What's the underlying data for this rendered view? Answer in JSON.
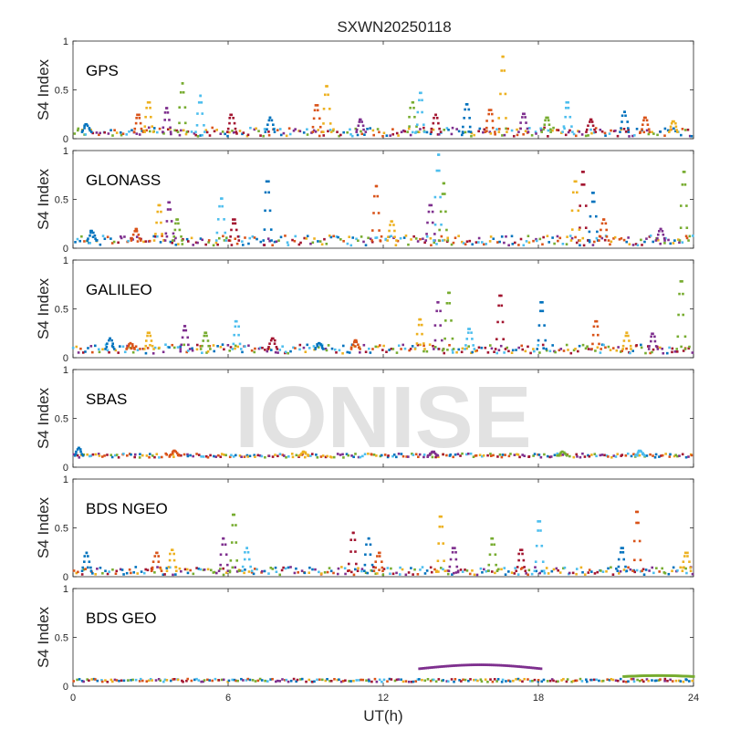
{
  "title": "SXWN20250118",
  "watermark": "IONISE",
  "xlabel": "UT(h)",
  "ylabel": "S4 Index",
  "xticks": [
    "0",
    "6",
    "12",
    "18",
    "24"
  ],
  "yticks": [
    "0",
    "0.5",
    "1"
  ],
  "colors": [
    "#0072BD",
    "#D95319",
    "#EDB120",
    "#7E2F8E",
    "#77AC30",
    "#4DBEEE",
    "#A2142F"
  ],
  "chart_data": [
    {
      "type": "scatter",
      "label": "GPS",
      "xlim": [
        0,
        24
      ],
      "ylim": [
        0,
        1
      ],
      "baseline": 0.07,
      "noise": 0.045,
      "spikes": [
        {
          "x": 0.6,
          "y": 0.15
        },
        {
          "x": 2.6,
          "y": 0.25
        },
        {
          "x": 3.0,
          "y": 0.38
        },
        {
          "x": 3.7,
          "y": 0.32
        },
        {
          "x": 4.3,
          "y": 0.58
        },
        {
          "x": 5.0,
          "y": 0.45
        },
        {
          "x": 6.2,
          "y": 0.25
        },
        {
          "x": 7.7,
          "y": 0.22
        },
        {
          "x": 9.5,
          "y": 0.35
        },
        {
          "x": 9.9,
          "y": 0.55
        },
        {
          "x": 11.2,
          "y": 0.2
        },
        {
          "x": 13.2,
          "y": 0.38
        },
        {
          "x": 13.5,
          "y": 0.48
        },
        {
          "x": 14.1,
          "y": 0.25
        },
        {
          "x": 15.3,
          "y": 0.36
        },
        {
          "x": 16.2,
          "y": 0.3
        },
        {
          "x": 16.7,
          "y": 0.86
        },
        {
          "x": 17.5,
          "y": 0.26
        },
        {
          "x": 18.4,
          "y": 0.22
        },
        {
          "x": 19.2,
          "y": 0.38
        },
        {
          "x": 20.1,
          "y": 0.2
        },
        {
          "x": 21.4,
          "y": 0.28
        },
        {
          "x": 22.2,
          "y": 0.22
        },
        {
          "x": 23.3,
          "y": 0.18
        }
      ]
    },
    {
      "type": "scatter",
      "label": "GLONASS",
      "xlim": [
        0,
        24
      ],
      "ylim": [
        0,
        1
      ],
      "baseline": 0.08,
      "noise": 0.05,
      "spikes": [
        {
          "x": 0.8,
          "y": 0.18
        },
        {
          "x": 2.5,
          "y": 0.2
        },
        {
          "x": 3.4,
          "y": 0.45
        },
        {
          "x": 3.8,
          "y": 0.48
        },
        {
          "x": 4.1,
          "y": 0.3
        },
        {
          "x": 5.8,
          "y": 0.52
        },
        {
          "x": 6.3,
          "y": 0.3
        },
        {
          "x": 7.6,
          "y": 0.7
        },
        {
          "x": 11.8,
          "y": 0.65
        },
        {
          "x": 12.4,
          "y": 0.28
        },
        {
          "x": 13.9,
          "y": 0.45
        },
        {
          "x": 14.4,
          "y": 0.68
        },
        {
          "x": 14.2,
          "y": 0.98
        },
        {
          "x": 19.8,
          "y": 0.8
        },
        {
          "x": 20.2,
          "y": 0.58
        },
        {
          "x": 20.6,
          "y": 0.3
        },
        {
          "x": 19.5,
          "y": 0.7
        },
        {
          "x": 22.8,
          "y": 0.2
        },
        {
          "x": 23.7,
          "y": 0.8
        }
      ]
    },
    {
      "type": "scatter",
      "label": "GALILEO",
      "xlim": [
        0,
        24
      ],
      "ylim": [
        0,
        1
      ],
      "baseline": 0.09,
      "noise": 0.045,
      "spikes": [
        {
          "x": 1.5,
          "y": 0.2
        },
        {
          "x": 2.3,
          "y": 0.15
        },
        {
          "x": 3.0,
          "y": 0.26
        },
        {
          "x": 4.4,
          "y": 0.33
        },
        {
          "x": 5.2,
          "y": 0.26
        },
        {
          "x": 6.4,
          "y": 0.38
        },
        {
          "x": 7.8,
          "y": 0.2
        },
        {
          "x": 9.6,
          "y": 0.15
        },
        {
          "x": 11.0,
          "y": 0.18
        },
        {
          "x": 13.5,
          "y": 0.4
        },
        {
          "x": 14.2,
          "y": 0.58
        },
        {
          "x": 14.6,
          "y": 0.68
        },
        {
          "x": 15.4,
          "y": 0.3
        },
        {
          "x": 16.6,
          "y": 0.65
        },
        {
          "x": 18.2,
          "y": 0.58
        },
        {
          "x": 20.3,
          "y": 0.38
        },
        {
          "x": 21.5,
          "y": 0.26
        },
        {
          "x": 22.5,
          "y": 0.25
        },
        {
          "x": 23.6,
          "y": 0.8
        }
      ]
    },
    {
      "type": "scatter",
      "label": "SBAS",
      "xlim": [
        0,
        24
      ],
      "ylim": [
        0,
        1
      ],
      "baseline": 0.12,
      "noise": 0.02,
      "spikes": [
        {
          "x": 0.3,
          "y": 0.2
        },
        {
          "x": 4.0,
          "y": 0.17
        },
        {
          "x": 9.0,
          "y": 0.16
        },
        {
          "x": 14.0,
          "y": 0.16
        },
        {
          "x": 19.0,
          "y": 0.16
        },
        {
          "x": 22.0,
          "y": 0.17
        }
      ]
    },
    {
      "type": "scatter",
      "label": "BDS NGEO",
      "xlim": [
        0,
        24
      ],
      "ylim": [
        0,
        1
      ],
      "baseline": 0.06,
      "noise": 0.04,
      "spikes": [
        {
          "x": 0.6,
          "y": 0.25
        },
        {
          "x": 3.3,
          "y": 0.25
        },
        {
          "x": 3.9,
          "y": 0.28
        },
        {
          "x": 5.9,
          "y": 0.4
        },
        {
          "x": 6.3,
          "y": 0.65
        },
        {
          "x": 6.8,
          "y": 0.3
        },
        {
          "x": 10.9,
          "y": 0.46
        },
        {
          "x": 11.5,
          "y": 0.4
        },
        {
          "x": 11.9,
          "y": 0.25
        },
        {
          "x": 14.3,
          "y": 0.63
        },
        {
          "x": 14.8,
          "y": 0.3
        },
        {
          "x": 16.3,
          "y": 0.4
        },
        {
          "x": 18.1,
          "y": 0.58
        },
        {
          "x": 17.4,
          "y": 0.28
        },
        {
          "x": 21.3,
          "y": 0.3
        },
        {
          "x": 21.9,
          "y": 0.68
        },
        {
          "x": 23.8,
          "y": 0.25
        }
      ]
    },
    {
      "type": "scatter",
      "label": "BDS GEO",
      "xlim": [
        0,
        24
      ],
      "ylim": [
        0,
        1
      ],
      "baseline": 0.06,
      "noise": 0.015,
      "spikes": [],
      "arcs": [
        {
          "x0": 13.4,
          "x1": 18.1,
          "y0": 0.18,
          "ymid": 0.22,
          "color": "#7E2F8E"
        },
        {
          "x0": 21.3,
          "x1": 24.0,
          "y0": 0.1,
          "ymid": 0.11,
          "color": "#77AC30"
        }
      ]
    }
  ]
}
